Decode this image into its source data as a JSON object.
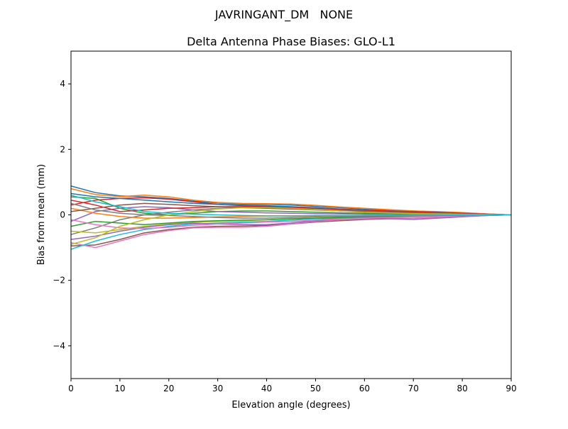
{
  "chart_data": {
    "type": "line",
    "suptitle": "JAVRINGANT_DM   NONE",
    "title": "Delta Antenna Phase Biases: GLO-L1",
    "xlabel": "Elevation angle (degrees)",
    "ylabel": "Bias from mean (mm)",
    "xlim": [
      0,
      90
    ],
    "ylim": [
      -5,
      5
    ],
    "xticks": [
      0,
      10,
      20,
      30,
      40,
      50,
      60,
      70,
      80,
      90
    ],
    "yticks": [
      -4,
      -2,
      0,
      2,
      4
    ],
    "xtick_labels": [
      "0",
      "10",
      "20",
      "30",
      "40",
      "50",
      "60",
      "70",
      "80",
      "90"
    ],
    "ytick_labels": [
      "−4",
      "−2",
      "0",
      "2",
      "4"
    ],
    "grid": false,
    "legend": "none",
    "colors": [
      "#1f77b4",
      "#ff7f0e",
      "#2ca02c",
      "#d62728",
      "#9467bd",
      "#8c564b",
      "#e377c2",
      "#7f7f7f",
      "#bcbd22",
      "#17becf"
    ],
    "x": [
      0,
      5,
      10,
      15,
      20,
      25,
      30,
      35,
      40,
      45,
      50,
      55,
      60,
      65,
      70,
      75,
      80,
      85,
      90
    ],
    "series": [
      {
        "values": [
          0.88,
          0.68,
          0.58,
          0.55,
          0.5,
          0.42,
          0.36,
          0.33,
          0.32,
          0.3,
          0.26,
          0.22,
          0.18,
          0.14,
          0.12,
          0.09,
          0.06,
          0.03,
          0
        ]
      },
      {
        "values": [
          0.8,
          0.62,
          0.56,
          0.6,
          0.55,
          0.45,
          0.38,
          0.35,
          0.34,
          0.33,
          0.29,
          0.24,
          0.2,
          0.16,
          0.12,
          0.1,
          0.07,
          0.03,
          0
        ]
      },
      {
        "values": [
          0.55,
          0.5,
          0.2,
          0.05,
          0.0,
          0.05,
          0.1,
          0.12,
          0.12,
          0.1,
          0.08,
          0.06,
          0.05,
          0.04,
          0.03,
          0.02,
          0.01,
          0.0,
          0
        ]
      },
      {
        "values": [
          0.3,
          0.45,
          0.5,
          0.52,
          0.48,
          0.4,
          0.32,
          0.28,
          0.26,
          0.22,
          0.18,
          0.15,
          0.12,
          0.1,
          0.08,
          0.06,
          0.04,
          0.02,
          0
        ]
      },
      {
        "values": [
          -0.2,
          0.1,
          0.2,
          0.25,
          0.22,
          0.15,
          0.1,
          0.08,
          0.06,
          0.05,
          0.04,
          0.03,
          0.02,
          0.02,
          0.01,
          0.01,
          0.0,
          0.0,
          0
        ]
      },
      {
        "values": [
          -0.95,
          -0.92,
          -0.75,
          -0.55,
          -0.45,
          -0.38,
          -0.35,
          -0.34,
          -0.32,
          -0.28,
          -0.22,
          -0.18,
          -0.14,
          -0.12,
          -0.1,
          -0.08,
          -0.05,
          -0.02,
          0
        ]
      },
      {
        "values": [
          -0.85,
          -1.0,
          -0.8,
          -0.6,
          -0.48,
          -0.4,
          -0.38,
          -0.38,
          -0.35,
          -0.28,
          -0.2,
          -0.15,
          -0.12,
          -0.1,
          -0.1,
          -0.08,
          -0.05,
          -0.02,
          0
        ]
      },
      {
        "values": [
          -0.6,
          -0.4,
          -0.15,
          0.0,
          0.08,
          0.15,
          0.2,
          0.22,
          0.22,
          0.2,
          0.18,
          0.15,
          0.12,
          0.1,
          0.08,
          0.06,
          0.04,
          0.02,
          0
        ]
      },
      {
        "values": [
          -0.5,
          -0.55,
          -0.45,
          -0.35,
          -0.28,
          -0.22,
          -0.2,
          -0.18,
          -0.15,
          -0.12,
          -0.1,
          -0.08,
          -0.06,
          -0.05,
          -0.04,
          -0.03,
          -0.02,
          -0.01,
          0
        ]
      },
      {
        "values": [
          -1.05,
          -0.8,
          -0.6,
          -0.45,
          -0.35,
          -0.28,
          -0.25,
          -0.22,
          -0.2,
          -0.16,
          -0.12,
          -0.1,
          -0.08,
          -0.06,
          -0.05,
          -0.04,
          -0.03,
          -0.01,
          0
        ]
      },
      {
        "values": [
          0.65,
          0.55,
          0.5,
          0.45,
          0.4,
          0.35,
          0.32,
          0.3,
          0.28,
          0.25,
          0.22,
          0.18,
          0.15,
          0.12,
          0.1,
          0.08,
          0.05,
          0.02,
          0
        ]
      },
      {
        "values": [
          0.2,
          0.05,
          -0.05,
          -0.1,
          -0.1,
          -0.08,
          -0.06,
          -0.05,
          -0.04,
          -0.04,
          -0.03,
          -0.03,
          -0.02,
          -0.02,
          -0.01,
          -0.01,
          0.0,
          0.0,
          0
        ]
      },
      {
        "values": [
          -0.35,
          -0.2,
          -0.25,
          -0.3,
          -0.25,
          -0.2,
          -0.18,
          -0.16,
          -0.15,
          -0.12,
          -0.1,
          -0.08,
          -0.06,
          -0.05,
          -0.04,
          -0.03,
          -0.02,
          -0.01,
          0
        ]
      },
      {
        "values": [
          0.45,
          0.3,
          0.1,
          0.15,
          0.2,
          0.22,
          0.25,
          0.25,
          0.24,
          0.22,
          0.2,
          0.17,
          0.14,
          0.12,
          0.1,
          0.07,
          0.05,
          0.02,
          0
        ]
      },
      {
        "values": [
          -0.75,
          -0.65,
          -0.5,
          -0.38,
          -0.3,
          -0.25,
          -0.28,
          -0.3,
          -0.3,
          -0.25,
          -0.18,
          -0.12,
          -0.1,
          -0.12,
          -0.14,
          -0.1,
          -0.06,
          -0.02,
          0
        ]
      },
      {
        "values": [
          0.1,
          0.2,
          0.3,
          0.35,
          0.32,
          0.28,
          0.25,
          0.22,
          0.2,
          0.18,
          0.15,
          0.12,
          0.1,
          0.08,
          0.06,
          0.05,
          0.03,
          0.01,
          0
        ]
      },
      {
        "values": [
          -0.15,
          -0.3,
          -0.4,
          -0.42,
          -0.38,
          -0.32,
          -0.28,
          -0.25,
          -0.22,
          -0.2,
          -0.16,
          -0.12,
          -0.1,
          -0.08,
          -0.06,
          -0.05,
          -0.03,
          -0.01,
          0
        ]
      },
      {
        "values": [
          0.35,
          0.15,
          0.05,
          0.0,
          -0.02,
          -0.05,
          -0.08,
          -0.1,
          -0.1,
          -0.08,
          -0.06,
          -0.05,
          -0.04,
          -0.03,
          -0.03,
          -0.02,
          -0.01,
          0.0,
          0
        ]
      },
      {
        "values": [
          -0.9,
          -0.7,
          -0.35,
          -0.15,
          0.0,
          0.1,
          0.18,
          0.22,
          0.22,
          0.2,
          0.16,
          0.12,
          0.08,
          0.06,
          0.04,
          0.03,
          0.02,
          0.01,
          0
        ]
      },
      {
        "values": [
          0.6,
          0.4,
          0.25,
          0.1,
          0.05,
          0.02,
          0.0,
          -0.02,
          -0.03,
          -0.03,
          -0.02,
          -0.02,
          -0.02,
          -0.01,
          -0.01,
          -0.01,
          0.0,
          0.0,
          0
        ]
      }
    ]
  }
}
